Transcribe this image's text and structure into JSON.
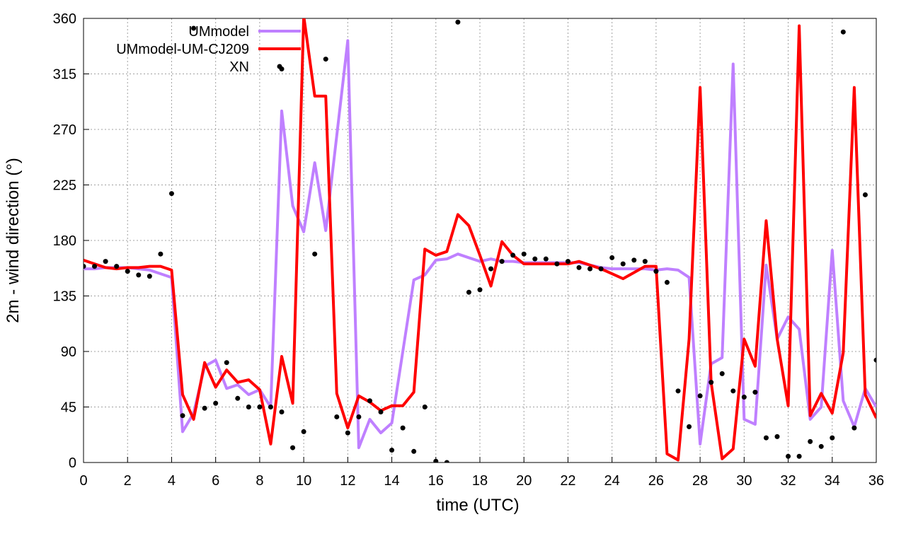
{
  "chart_data": {
    "type": "line",
    "xlabel": "time (UTC)",
    "ylabel": "2m - wind direction (°)",
    "x": [
      0,
      0.5,
      1,
      1.5,
      2,
      2.5,
      3,
      3.5,
      4,
      4.5,
      5,
      5.5,
      6,
      6.5,
      7,
      7.5,
      8,
      8.5,
      9,
      9.5,
      10,
      10.5,
      11,
      11.5,
      12,
      12.5,
      13,
      13.5,
      14,
      14.5,
      15,
      15.5,
      16,
      16.5,
      17,
      17.5,
      18,
      18.5,
      19,
      19.5,
      20,
      20.5,
      21,
      21.5,
      22,
      22.5,
      23,
      23.5,
      24,
      24.5,
      25,
      25.5,
      26,
      26.5,
      27,
      27.5,
      28,
      28.5,
      29,
      29.5,
      30,
      30.5,
      31,
      31.5,
      32,
      32.5,
      33,
      33.5,
      34,
      34.5,
      35,
      35.5,
      36
    ],
    "series": [
      {
        "name": "UMmodel",
        "color": "#bf80ff",
        "values": [
          157,
          157,
          158,
          158,
          158,
          157,
          156,
          153,
          150,
          25,
          40,
          78,
          83,
          60,
          63,
          55,
          59,
          45,
          285,
          208,
          187,
          243,
          188,
          265,
          342,
          12,
          35,
          24,
          32,
          90,
          148,
          152,
          164,
          165,
          169,
          166,
          163,
          165,
          163,
          163,
          162,
          162,
          162,
          162,
          162,
          162,
          160,
          158,
          157,
          157,
          157,
          157,
          156,
          157,
          156,
          150,
          15,
          80,
          85,
          323,
          35,
          31,
          160,
          100,
          118,
          108,
          35,
          45,
          172,
          50,
          29,
          60,
          45
        ]
      },
      {
        "name": "UMmodel-UM-CJ209",
        "color": "#ff0000",
        "values": [
          164,
          161,
          158,
          157,
          158,
          158,
          159,
          159,
          156,
          55,
          35,
          81,
          61,
          75,
          65,
          67,
          59,
          15,
          86,
          48,
          362,
          297,
          297,
          56,
          28,
          54,
          49,
          42,
          46,
          46,
          57,
          173,
          168,
          171,
          201,
          192,
          168,
          143,
          179,
          168,
          161,
          161,
          161,
          161,
          161,
          163,
          160,
          157,
          153,
          149,
          154,
          159,
          159,
          7,
          2,
          100,
          304,
          65,
          3,
          11,
          100,
          78,
          196,
          100,
          46,
          354,
          38,
          56,
          40,
          89,
          304,
          55,
          36
        ]
      },
      {
        "name": "XN",
        "color": "#000000",
        "marker": "dot",
        "x": [
          0,
          0.5,
          1,
          1.5,
          2,
          2.5,
          3,
          3.5,
          4,
          4.5,
          5,
          5.5,
          6,
          6.5,
          7,
          7.5,
          8,
          8.5,
          9,
          9,
          9.5,
          10,
          10.5,
          11,
          11.5,
          12,
          12.5,
          13,
          13.5,
          14,
          14.5,
          15,
          15.5,
          16,
          16.5,
          17,
          17.5,
          18,
          18.5,
          19,
          19.5,
          20,
          20.5,
          21,
          21.5,
          22,
          22.5,
          23,
          23.5,
          24,
          24.5,
          25,
          25.5,
          26,
          26.5,
          27,
          27.5,
          28,
          28.5,
          29,
          29.5,
          30,
          30.5,
          31,
          31.5,
          32,
          32.5,
          33,
          33.5,
          34,
          34.5,
          35,
          35.5,
          36
        ],
        "values": [
          159,
          159,
          163,
          159,
          155,
          152,
          151,
          169,
          218,
          38,
          352,
          44,
          48,
          81,
          52,
          45,
          45,
          45,
          319,
          41,
          12,
          25,
          169,
          327,
          37,
          24,
          37,
          50,
          41,
          10,
          28,
          9,
          45,
          1,
          0,
          357,
          138,
          140,
          157,
          163,
          168,
          169,
          165,
          165,
          161,
          163,
          158,
          157,
          157,
          166,
          161,
          164,
          163,
          155,
          146,
          58,
          29,
          54,
          65,
          72,
          58,
          53,
          57,
          20,
          21,
          5,
          5,
          17,
          13,
          20,
          349,
          28,
          217,
          83
        ]
      }
    ],
    "xlim": [
      0,
      36
    ],
    "xticks": [
      0,
      2,
      4,
      6,
      8,
      10,
      12,
      14,
      16,
      18,
      20,
      22,
      24,
      26,
      28,
      30,
      32,
      34,
      36
    ],
    "ylim": [
      0,
      360
    ],
    "yticks": [
      0,
      45,
      90,
      135,
      180,
      225,
      270,
      315,
      360
    ],
    "grid": true,
    "legend": "top-left"
  }
}
